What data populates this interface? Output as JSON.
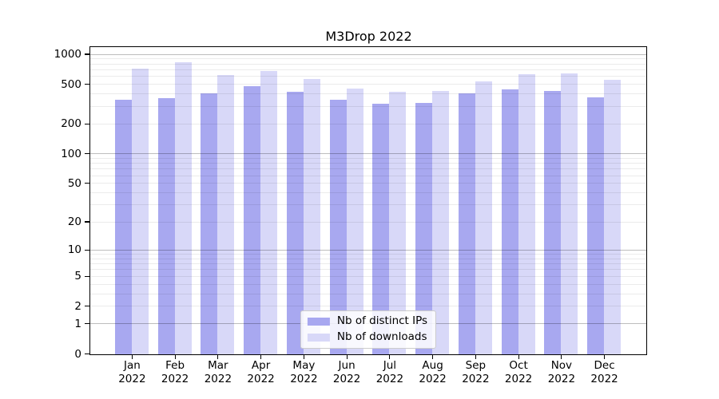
{
  "chart_data": {
    "type": "bar",
    "title": "M3Drop 2022",
    "xlabel": "",
    "ylabel": "",
    "y_scale": "log10(value+1)",
    "ylim": [
      0,
      1000
    ],
    "y_ticks": [
      1000,
      500,
      200,
      100,
      50,
      20,
      10,
      5,
      2,
      1,
      0
    ],
    "grid": true,
    "legend_position": "lower center",
    "x_year": "2022",
    "categories": [
      "Jan",
      "Feb",
      "Mar",
      "Apr",
      "May",
      "Jun",
      "Jul",
      "Aug",
      "Sep",
      "Oct",
      "Nov",
      "Dec"
    ],
    "series": [
      {
        "name": "Nb of distinct IPs",
        "color": "#a8a8f0",
        "values": [
          351,
          366,
          408,
          486,
          421,
          355,
          324,
          325,
          406,
          448,
          430,
          376
        ]
      },
      {
        "name": "Nb of downloads",
        "color": "#d8d8f8",
        "values": [
          723,
          838,
          628,
          689,
          573,
          456,
          422,
          432,
          539,
          640,
          648,
          563
        ]
      }
    ]
  }
}
